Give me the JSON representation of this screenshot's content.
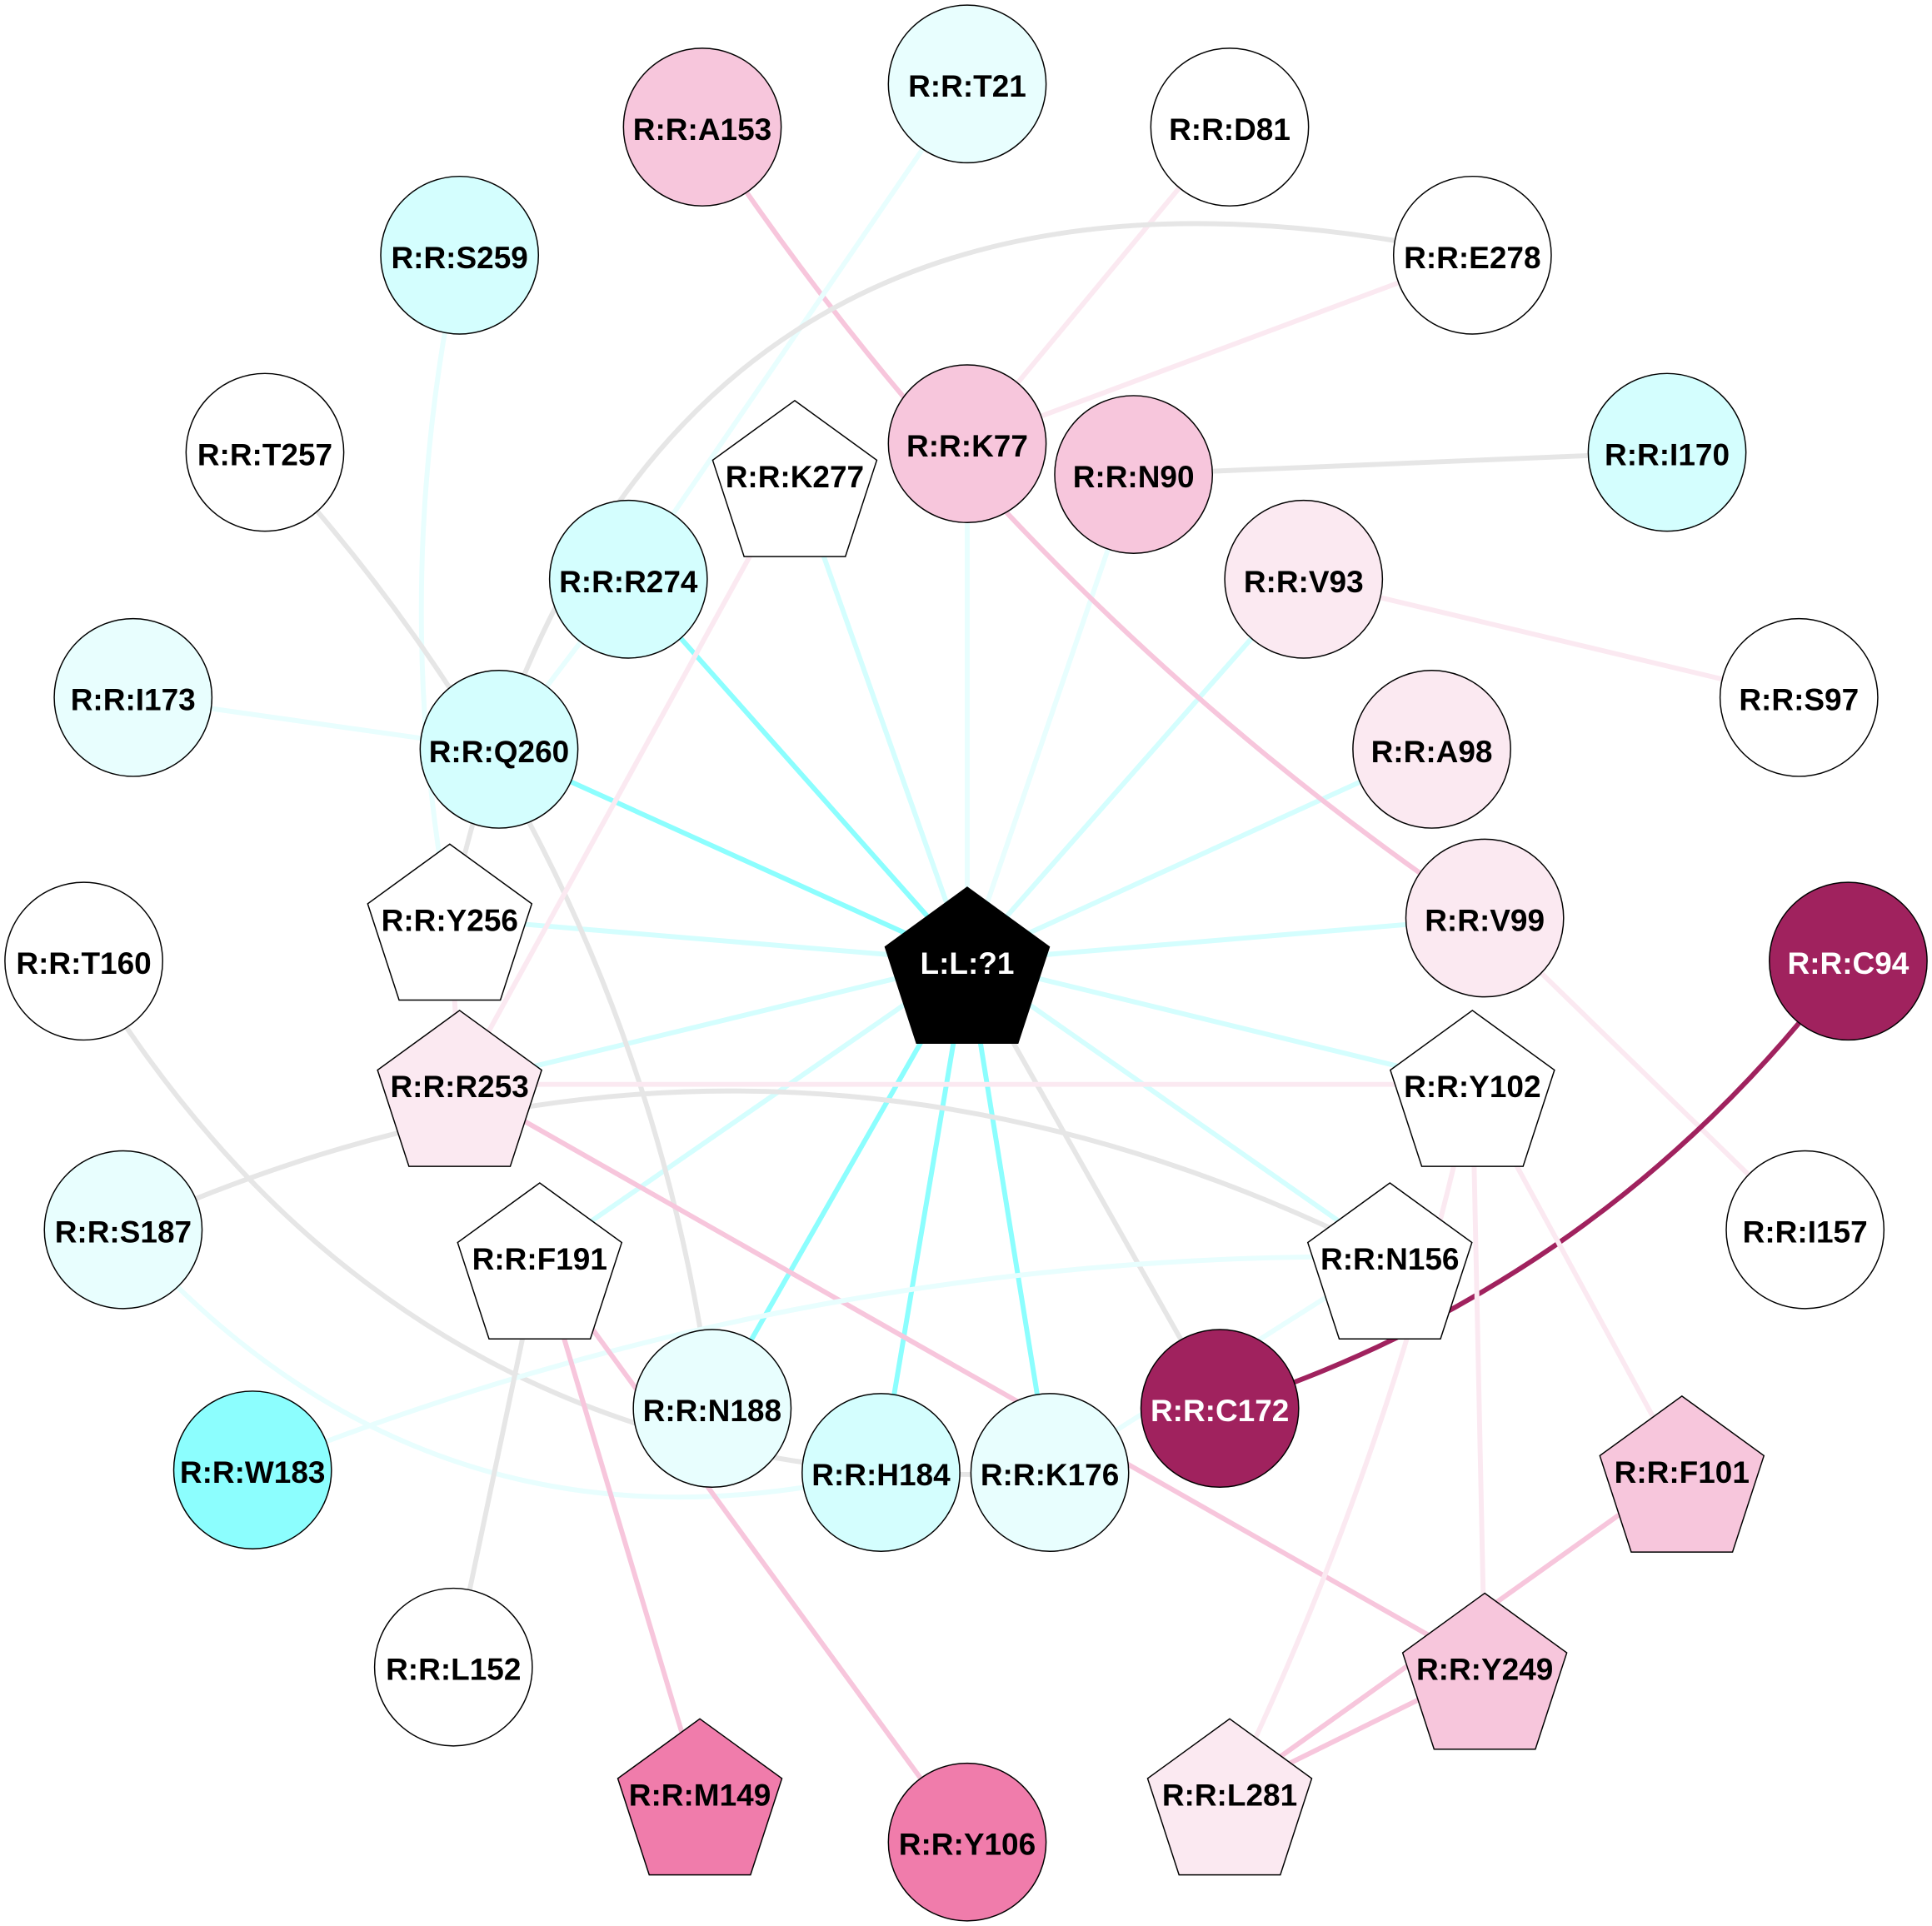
{
  "nodes": [
    {
      "label": "R:R:A153",
      "shape": "circle",
      "fill": "#f7c6dc"
    },
    {
      "label": "R:R:T21",
      "shape": "circle",
      "fill": "#e8fefe"
    },
    {
      "label": "R:R:D81",
      "shape": "circle",
      "fill": "#ffffff"
    },
    {
      "label": "R:R:S259",
      "shape": "circle",
      "fill": "#d4fefe"
    },
    {
      "label": "R:R:E278",
      "shape": "circle",
      "fill": "#ffffff"
    },
    {
      "label": "R:R:T257",
      "shape": "circle",
      "fill": "#ffffff"
    },
    {
      "label": "R:R:K277",
      "shape": "pentagon",
      "fill": "#ffffff"
    },
    {
      "label": "R:R:K77",
      "shape": "circle",
      "fill": "#f7c6dc"
    },
    {
      "label": "R:R:N90",
      "shape": "circle",
      "fill": "#f7c6dc"
    },
    {
      "label": "R:R:I170",
      "shape": "circle",
      "fill": "#d4fefe"
    },
    {
      "label": "R:R:R274",
      "shape": "circle",
      "fill": "#d4fefe"
    },
    {
      "label": "R:R:V93",
      "shape": "circle",
      "fill": "#fbe9f1"
    },
    {
      "label": "R:R:I173",
      "shape": "circle",
      "fill": "#e8fefe"
    },
    {
      "label": "R:R:Q260",
      "shape": "circle",
      "fill": "#d4fefe"
    },
    {
      "label": "R:R:A98",
      "shape": "circle",
      "fill": "#fbe9f1"
    },
    {
      "label": "R:R:S97",
      "shape": "circle",
      "fill": "#ffffff"
    },
    {
      "label": "R:R:Y256",
      "shape": "pentagon",
      "fill": "#ffffff"
    },
    {
      "label": "R:R:V99",
      "shape": "circle",
      "fill": "#fbe9f1"
    },
    {
      "label": "R:R:C94",
      "shape": "circle",
      "fill": "#a0225e"
    },
    {
      "label": "R:R:T160",
      "shape": "circle",
      "fill": "#ffffff"
    },
    {
      "label": "L:L:?1",
      "shape": "pentagon",
      "fill": "#000000"
    },
    {
      "label": "R:R:R253",
      "shape": "pentagon",
      "fill": "#fbe9f1"
    },
    {
      "label": "R:R:Y102",
      "shape": "pentagon",
      "fill": "#ffffff"
    },
    {
      "label": "R:R:S187",
      "shape": "circle",
      "fill": "#e8fefe"
    },
    {
      "label": "R:R:F191",
      "shape": "pentagon",
      "fill": "#ffffff"
    },
    {
      "label": "R:R:N156",
      "shape": "pentagon",
      "fill": "#ffffff"
    },
    {
      "label": "R:R:I157",
      "shape": "circle",
      "fill": "#ffffff"
    },
    {
      "label": "R:R:N188",
      "shape": "circle",
      "fill": "#e8fefe"
    },
    {
      "label": "R:R:C172",
      "shape": "circle",
      "fill": "#a0225e"
    },
    {
      "label": "R:R:W183",
      "shape": "circle",
      "fill": "#8cfefe"
    },
    {
      "label": "R:R:H184",
      "shape": "circle",
      "fill": "#d4fefe"
    },
    {
      "label": "R:R:K176",
      "shape": "circle",
      "fill": "#e8fefe"
    },
    {
      "label": "R:R:F101",
      "shape": "pentagon",
      "fill": "#f7c6dc"
    },
    {
      "label": "R:R:L152",
      "shape": "circle",
      "fill": "#ffffff"
    },
    {
      "label": "R:R:Y249",
      "shape": "pentagon",
      "fill": "#f7c6dc"
    },
    {
      "label": "R:R:M149",
      "shape": "pentagon",
      "fill": "#f07cab"
    },
    {
      "label": "R:R:Y106",
      "shape": "circle",
      "fill": "#f07cab"
    },
    {
      "label": "R:R:L281",
      "shape": "pentagon",
      "fill": "#fbe9f1"
    }
  ],
  "edges": [
    {
      "source": "L:L:?1",
      "target": "R:R:K277",
      "color": "#d4fefe"
    },
    {
      "source": "L:L:?1",
      "target": "R:R:K77",
      "color": "#e8fefe"
    },
    {
      "source": "L:L:?1",
      "target": "R:R:N90",
      "color": "#e8fefe"
    },
    {
      "source": "L:L:?1",
      "target": "R:R:V93",
      "color": "#d4fefe"
    },
    {
      "source": "L:L:?1",
      "target": "R:R:R274",
      "color": "#8cfefe"
    },
    {
      "source": "L:L:?1",
      "target": "R:R:Q260",
      "color": "#8cfefe"
    },
    {
      "source": "L:L:?1",
      "target": "R:R:Y256",
      "color": "#d4fefe"
    },
    {
      "source": "L:L:?1",
      "target": "R:R:R253",
      "color": "#d4fefe"
    },
    {
      "source": "L:L:?1",
      "target": "R:R:A98",
      "color": "#d4fefe"
    },
    {
      "source": "L:L:?1",
      "target": "R:R:V99",
      "color": "#d4fefe"
    },
    {
      "source": "L:L:?1",
      "target": "R:R:Y102",
      "color": "#d4fefe"
    },
    {
      "source": "L:L:?1",
      "target": "R:R:N156",
      "color": "#d4fefe"
    },
    {
      "source": "L:L:?1",
      "target": "R:R:F191",
      "color": "#d4fefe"
    },
    {
      "source": "L:L:?1",
      "target": "R:R:N188",
      "color": "#8cfefe"
    },
    {
      "source": "L:L:?1",
      "target": "R:R:H184",
      "color": "#8cfefe"
    },
    {
      "source": "L:L:?1",
      "target": "R:R:K176",
      "color": "#8cfefe"
    },
    {
      "source": "L:L:?1",
      "target": "R:R:C172",
      "color": "#e6e6e6"
    },
    {
      "source": "R:R:A153",
      "target": "R:R:V99",
      "color": "#f7c6dc",
      "bend": 0.05
    },
    {
      "source": "R:R:T21",
      "target": "R:R:R274",
      "color": "#e8fefe"
    },
    {
      "source": "R:R:D81",
      "target": "R:R:K77",
      "color": "#fbe9f1"
    },
    {
      "source": "R:R:E278",
      "target": "R:R:Y256",
      "color": "#e6e6e6",
      "bend": 0.25
    },
    {
      "source": "R:R:E278",
      "target": "R:R:K77",
      "color": "#fbe9f1"
    },
    {
      "source": "R:R:N90",
      "target": "R:R:I170",
      "color": "#e6e6e6"
    },
    {
      "source": "R:R:S259",
      "target": "R:R:Y256",
      "color": "#e8fefe",
      "bend": 0.05
    },
    {
      "source": "R:R:T257",
      "target": "R:R:N188",
      "color": "#e6e6e6",
      "bend": -0.08
    },
    {
      "source": "R:R:I173",
      "target": "R:R:Q260",
      "color": "#e8fefe"
    },
    {
      "source": "R:R:R274",
      "target": "R:R:Q260",
      "color": "#e8fefe"
    },
    {
      "source": "R:R:K277",
      "target": "R:R:R253",
      "color": "#fbe9f1"
    },
    {
      "source": "R:R:V93",
      "target": "R:R:S97",
      "color": "#fbe9f1"
    },
    {
      "source": "R:R:V99",
      "target": "R:R:I157",
      "color": "#fbe9f1"
    },
    {
      "source": "R:R:C94",
      "target": "R:R:C172",
      "color": "#a0225e",
      "bend": -0.08
    },
    {
      "source": "R:R:T160",
      "target": "R:R:K176",
      "color": "#e6e6e6",
      "bend": 0.15
    },
    {
      "source": "R:R:R253",
      "target": "R:R:Y102",
      "color": "#fbe9f1"
    },
    {
      "source": "R:R:R253",
      "target": "R:R:Y249",
      "color": "#f7c6dc"
    },
    {
      "source": "R:R:Y256",
      "target": "R:R:R253",
      "color": "#fbe9f1"
    },
    {
      "source": "R:R:S187",
      "target": "R:R:N156",
      "color": "#e6e6e6",
      "bend": -0.12
    },
    {
      "source": "R:R:S187",
      "target": "R:R:H184",
      "color": "#e8fefe",
      "bend": 0.15
    },
    {
      "source": "R:R:W183",
      "target": "R:R:N156",
      "color": "#e8fefe",
      "bend": -0.05
    },
    {
      "source": "R:R:N156",
      "target": "R:R:K176",
      "color": "#e8fefe"
    },
    {
      "source": "R:R:F191",
      "target": "R:R:L152",
      "color": "#e6e6e6"
    },
    {
      "source": "R:R:F191",
      "target": "R:R:M149",
      "color": "#f7c6dc"
    },
    {
      "source": "R:R:F191",
      "target": "R:R:Y106",
      "color": "#f7c6dc"
    },
    {
      "source": "R:R:Y102",
      "target": "R:R:L281",
      "color": "#fbe9f1",
      "bend": -0.03
    },
    {
      "source": "R:R:Y102",
      "target": "R:R:Y249",
      "color": "#fbe9f1"
    },
    {
      "source": "R:R:Y102",
      "target": "R:R:F101",
      "color": "#fbe9f1"
    },
    {
      "source": "R:R:F101",
      "target": "R:R:L281",
      "color": "#f7c6dc"
    },
    {
      "source": "R:R:Y249",
      "target": "R:R:L281",
      "color": "#f7c6dc"
    }
  ]
}
